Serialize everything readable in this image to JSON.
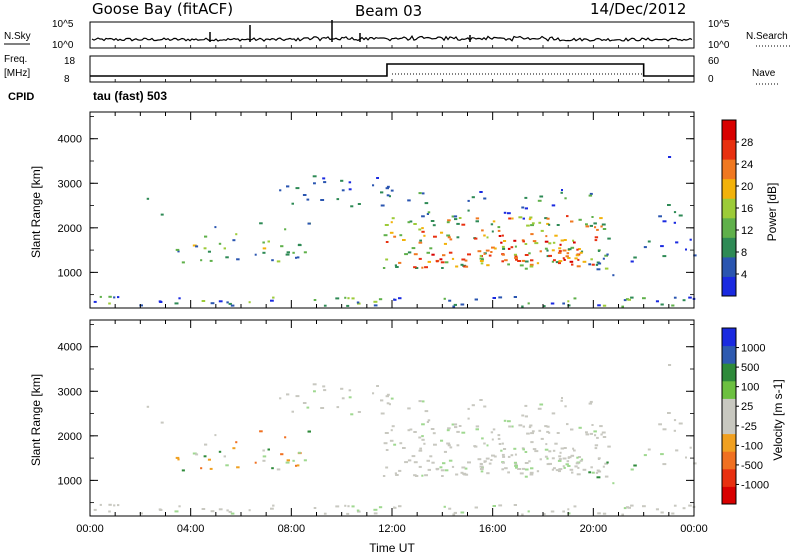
{
  "header": {
    "station": "Goose Bay (fitACF)",
    "beam": "Beam 03",
    "date": "14/Dec/2012"
  },
  "panels": {
    "nsky": {
      "left_label": "N.Sky",
      "right_label": "N.Search",
      "ticks_left": [
        "10^5",
        "10^0"
      ],
      "ticks_right": [
        "10^5",
        "10^0"
      ]
    },
    "freq": {
      "left_label_1": "Freq.",
      "left_label_2": "[MHz]",
      "cpid_label": "CPID",
      "right_label": "Nave",
      "ticks_left": [
        "18",
        "8"
      ],
      "ticks_right": [
        "60",
        "0"
      ]
    },
    "cpid_text": "tau (fast) 503"
  },
  "colors": {
    "power_scale": [
      "#1a2ae0",
      "#2a55b0",
      "#2e8a55",
      "#5fb04a",
      "#9ccb38",
      "#f2b20a",
      "#f07820",
      "#e83010",
      "#d80000"
    ],
    "velocity_scale": [
      "#1a2ae0",
      "#2e5ab0",
      "#2e8a3a",
      "#6cc040",
      "#c8c8c0",
      "#c8c8c0",
      "#f0a020",
      "#f07020",
      "#e83010",
      "#d80000"
    ],
    "gray": "#c8c8c0"
  },
  "chart_data": [
    {
      "type": "heatmap",
      "name": "power",
      "ylabel": "Slant Range [km]",
      "yticks": [
        1000,
        2000,
        3000,
        4000
      ],
      "ylim": [
        200,
        4600
      ],
      "xlim": [
        0,
        24
      ],
      "colorbar_label": "Power [dB]",
      "colorbar_ticks": [
        4,
        8,
        12,
        16,
        20,
        24,
        28
      ],
      "colorbar_range": [
        0,
        32
      ]
    },
    {
      "type": "heatmap",
      "name": "velocity",
      "ylabel": "Slant Range [km]",
      "yticks": [
        1000,
        2000,
        3000,
        4000
      ],
      "ylim": [
        200,
        4600
      ],
      "xlim": [
        0,
        24
      ],
      "colorbar_label": "Velocity [m s-1]",
      "colorbar_ticks": [
        "1000",
        "500",
        "100",
        "25",
        "-25",
        "-100",
        "-500",
        "-1000"
      ],
      "xlabel": "Time UT",
      "xticks": [
        "00:00",
        "04:00",
        "08:00",
        "12:00",
        "16:00",
        "20:00",
        "00:00"
      ]
    },
    {
      "type": "line",
      "name": "frequency",
      "x": [
        0,
        11.8,
        11.8,
        22,
        22,
        24
      ],
      "y": [
        10.5,
        10.5,
        15.5,
        15.5,
        10.5,
        10.5
      ],
      "ylim": [
        8,
        18
      ]
    }
  ]
}
